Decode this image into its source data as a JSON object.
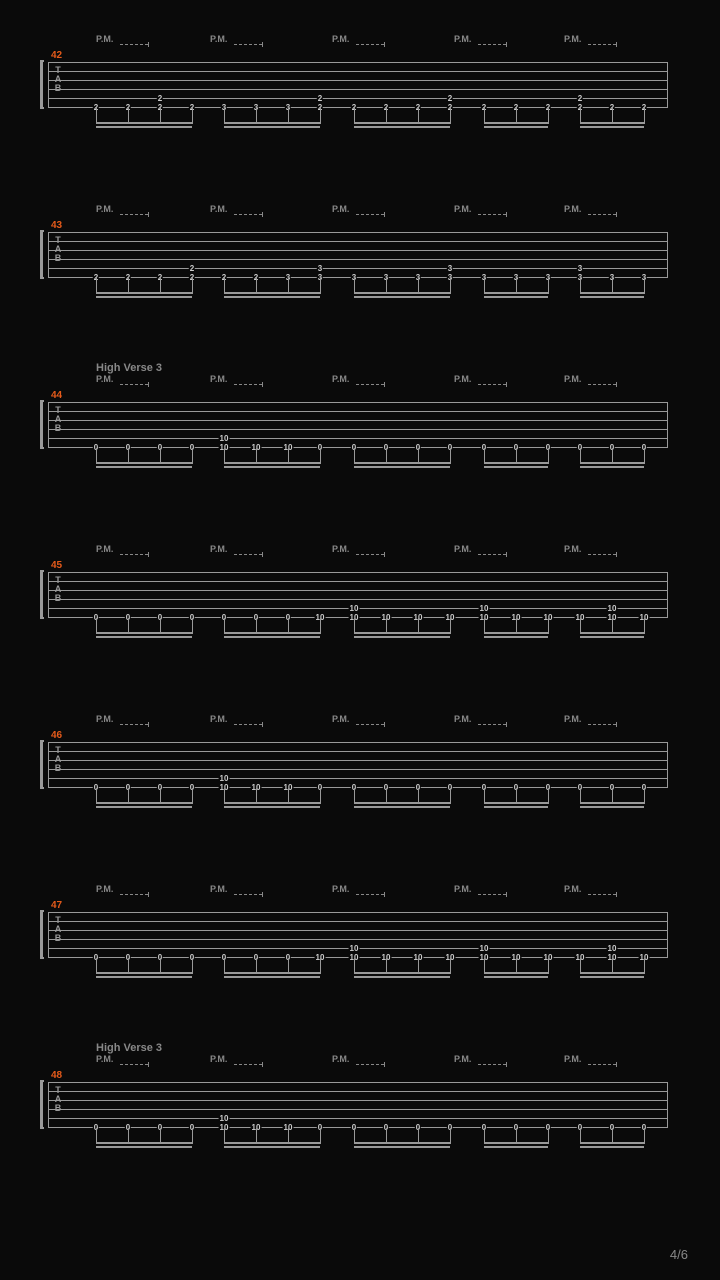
{
  "page_counter": "4/6",
  "pm_label": "P.M.",
  "section_title": "High Verse 3",
  "colors": {
    "bg": "#0a0a0a",
    "staff_line": "#999999",
    "text_dim": "#888888",
    "fret": "#cccccc",
    "measure_num": "#e55a1a"
  },
  "pm_x_positions": [
    48,
    162,
    284,
    406,
    516
  ],
  "pm_dash_len": 28,
  "note_x_positions": [
    48,
    80,
    112,
    144,
    176,
    208,
    240,
    272,
    306,
    338,
    370,
    402,
    436,
    468,
    500,
    532,
    564,
    596
  ],
  "beam_groups": [
    {
      "start": 48,
      "end": 144
    },
    {
      "start": 176,
      "end": 272
    },
    {
      "start": 306,
      "end": 402
    },
    {
      "start": 436,
      "end": 500
    },
    {
      "start": 532,
      "end": 596
    }
  ],
  "systems": [
    {
      "num": "42",
      "section": null,
      "frets": [
        "2",
        "2",
        "2",
        "2",
        "3",
        "3",
        "3",
        "2",
        "2",
        "2",
        "2",
        "2",
        "2",
        "2",
        "2",
        "2",
        "2",
        "2"
      ],
      "upper_accent": {
        "2": "2",
        "7": "2",
        "11": "2",
        "15": "2"
      }
    },
    {
      "num": "43",
      "section": null,
      "frets": [
        "2",
        "2",
        "2",
        "2",
        "2",
        "2",
        "3",
        "3",
        "3",
        "3",
        "3",
        "3",
        "3",
        "3",
        "3",
        "3",
        "3",
        "3"
      ],
      "upper_accent": {
        "3": "2",
        "7": "3",
        "11": "3",
        "15": "3"
      }
    },
    {
      "num": "44",
      "section": "High Verse 3",
      "frets": [
        "0",
        "0",
        "0",
        "0",
        "10",
        "10",
        "10",
        "0",
        "0",
        "0",
        "0",
        "0",
        "0",
        "0",
        "0",
        "0",
        "0",
        "0"
      ],
      "upper_accent": {
        "4": "10"
      }
    },
    {
      "num": "45",
      "section": null,
      "frets": [
        "0",
        "0",
        "0",
        "0",
        "0",
        "0",
        "0",
        "10",
        "10",
        "10",
        "10",
        "10",
        "10",
        "10",
        "10",
        "10",
        "10",
        "10"
      ],
      "upper_accent": {
        "8": "10",
        "12": "10",
        "16": "10"
      }
    },
    {
      "num": "46",
      "section": null,
      "frets": [
        "0",
        "0",
        "0",
        "0",
        "10",
        "10",
        "10",
        "0",
        "0",
        "0",
        "0",
        "0",
        "0",
        "0",
        "0",
        "0",
        "0",
        "0"
      ],
      "upper_accent": {
        "4": "10"
      }
    },
    {
      "num": "47",
      "section": null,
      "frets": [
        "0",
        "0",
        "0",
        "0",
        "0",
        "0",
        "0",
        "10",
        "10",
        "10",
        "10",
        "10",
        "10",
        "10",
        "10",
        "10",
        "10",
        "10"
      ],
      "upper_accent": {
        "8": "10",
        "12": "10",
        "16": "10"
      }
    },
    {
      "num": "48",
      "section": "High Verse 3",
      "frets": [
        "0",
        "0",
        "0",
        "0",
        "10",
        "10",
        "10",
        "0",
        "0",
        "0",
        "0",
        "0",
        "0",
        "0",
        "0",
        "0",
        "0",
        "0"
      ],
      "upper_accent": {
        "4": "10"
      }
    }
  ]
}
